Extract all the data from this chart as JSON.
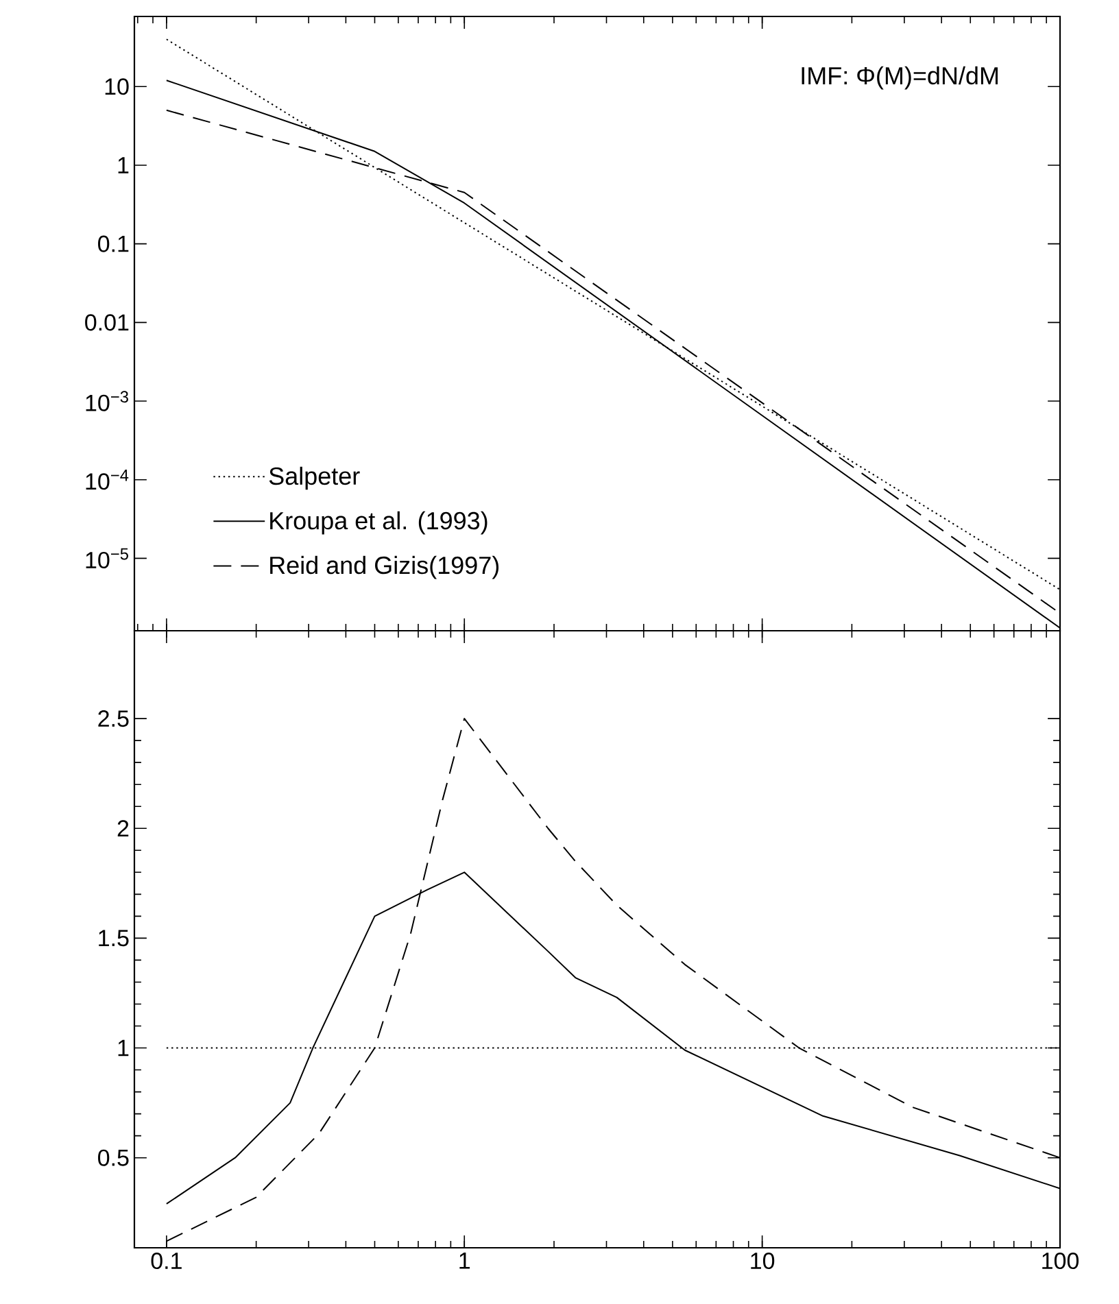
{
  "chart_data": [
    {
      "type": "line",
      "annotations": [
        "IMF: Φ(M)=dN/dM"
      ],
      "log": "xy",
      "legend": "bottom left",
      "tick_labels": "y",
      "xlim": [
        0.078,
        100
      ],
      "ylim": [
        1.2e-06,
        78
      ],
      "yticks": [
        10,
        1,
        0.1,
        0.01,
        {
          "value": 0.001,
          "label": "10$^{−3}$"
        },
        {
          "value": 0.0001,
          "label": "10$^{−4}$"
        },
        {
          "value": 1e-05,
          "label": "10$^{−5}$"
        }
      ],
      "series": [
        {
          "name": "Salpeter",
          "color": "#000000",
          "line_style": "dotted",
          "x": [
            0.1,
            100
          ],
          "values": [
            40,
            4e-06
          ]
        },
        {
          "name": "Kroupa et al. (1993)",
          "color": "#000000",
          "line_style": "solid",
          "x": [
            0.1,
            0.5,
            1,
            100
          ],
          "values": [
            12,
            1.5,
            0.33,
            1.3e-06
          ]
        },
        {
          "name": "Reid and Gizis(1997)",
          "color": "#000000",
          "line_style": "dashed",
          "x": [
            0.1,
            1,
            100
          ],
          "values": [
            5,
            0.45,
            2e-06
          ]
        }
      ]
    },
    {
      "type": "line",
      "log": "x",
      "xlim": [
        0.078,
        100
      ],
      "ylim": [
        0.09,
        2.9
      ],
      "xticks": [
        0.1,
        1,
        10,
        100
      ],
      "yticks": [
        0.5,
        1,
        1.5,
        2,
        2.5
      ],
      "series": [
        {
          "color": "#000000",
          "line_style": "dotted",
          "x": [
            0.1,
            100
          ],
          "values": [
            1,
            1
          ]
        },
        {
          "color": "#000000",
          "line_style": "solid",
          "x": [
            0.1,
            0.17,
            0.26,
            0.31,
            0.4,
            0.5,
            0.75,
            1,
            1.91,
            2.36,
            3.25,
            5.5,
            16,
            46,
            100
          ],
          "values": [
            0.29,
            0.5,
            0.75,
            1.0,
            1.32,
            1.6,
            1.72,
            1.8,
            1.44,
            1.32,
            1.23,
            0.99,
            0.69,
            0.51,
            0.36
          ]
        },
        {
          "color": "#000000",
          "line_style": "dashed",
          "x": [
            0.1,
            0.2,
            0.325,
            0.5,
            0.66,
            0.845,
            1,
            1.91,
            2.36,
            3.25,
            5.5,
            13.3,
            32,
            100
          ],
          "values": [
            0.12,
            0.32,
            0.61,
            1.0,
            1.52,
            2.13,
            2.5,
            2.0,
            1.85,
            1.65,
            1.38,
            1.0,
            0.73,
            0.5
          ]
        }
      ]
    }
  ]
}
